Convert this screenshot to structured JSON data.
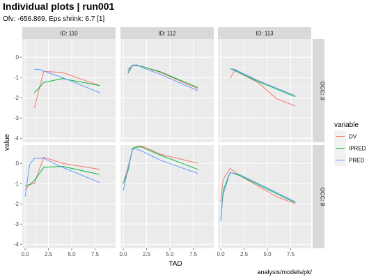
{
  "chart_data": {
    "type": "line",
    "title": "Individual plots | run001",
    "subtitle": "Ofv: -656.869, Eps shrink: 6.7 [1]",
    "xlabel": "TAD",
    "ylabel": "value",
    "caption": "analysis/models/pk/",
    "legend": {
      "title": "variable",
      "placement": "right"
    },
    "facet_columns": [
      "ID: 110",
      "ID: 112",
      "ID: 113"
    ],
    "facet_rows": [
      "OCC: 3",
      "OCC: 8"
    ],
    "xlim": [
      -0.3,
      9.7
    ],
    "x_ticks": [
      0.0,
      2.5,
      5.0,
      7.5
    ],
    "x_tick_labels": [
      "0.0",
      "2.5",
      "5.0",
      "7.5"
    ],
    "ylim": [
      -4.2,
      0.9
    ],
    "y_ticks": [
      -4,
      -3,
      -2,
      -1,
      0
    ],
    "y_tick_labels": [
      "-4",
      "-3",
      "-2",
      "-1",
      "0"
    ],
    "grid": true,
    "colors": {
      "DV": "#F8766D",
      "IPRED": "#00BA38",
      "PRED": "#619CFF"
    },
    "series_names": [
      "DV",
      "IPRED",
      "PRED"
    ],
    "panels": [
      {
        "row": 0,
        "col": 0,
        "series": [
          {
            "name": "DV",
            "x": [
              1.0,
              2.0,
              4.0,
              8.0
            ],
            "y": [
              -2.5,
              -0.7,
              -0.75,
              -1.4
            ]
          },
          {
            "name": "IPRED",
            "x": [
              1.0,
              2.0,
              4.0,
              8.0
            ],
            "y": [
              -1.75,
              -1.25,
              -1.05,
              -1.4
            ]
          },
          {
            "name": "PRED",
            "x": [
              1.0,
              1.5,
              2.0,
              4.0,
              8.0
            ],
            "y": [
              -0.6,
              -0.6,
              -0.68,
              -1.0,
              -1.75
            ]
          }
        ]
      },
      {
        "row": 0,
        "col": 1,
        "series": [
          {
            "name": "DV",
            "x": [
              0.5,
              1.0,
              2.0,
              4.0,
              8.0
            ],
            "y": [
              -0.6,
              -0.4,
              -0.45,
              -0.75,
              -1.55
            ]
          },
          {
            "name": "IPRED",
            "x": [
              0.5,
              1.0,
              1.5,
              2.0,
              4.0,
              8.0
            ],
            "y": [
              -0.8,
              -0.4,
              -0.4,
              -0.45,
              -0.72,
              -1.5
            ]
          },
          {
            "name": "PRED",
            "x": [
              0.5,
              1.0,
              1.5,
              2.0,
              4.0,
              8.0
            ],
            "y": [
              -0.7,
              -0.38,
              -0.38,
              -0.5,
              -0.85,
              -1.65
            ]
          }
        ]
      },
      {
        "row": 0,
        "col": 2,
        "series": [
          {
            "name": "DV",
            "x": [
              1.0,
              1.5,
              4.0,
              6.0,
              8.0
            ],
            "y": [
              -1.05,
              -0.65,
              -1.25,
              -2.05,
              -2.4
            ]
          },
          {
            "name": "IPRED",
            "x": [
              1.0,
              1.5,
              4.0,
              8.0
            ],
            "y": [
              -0.55,
              -0.65,
              -1.2,
              -1.95
            ]
          },
          {
            "name": "PRED",
            "x": [
              1.0,
              1.5,
              4.0,
              8.0
            ],
            "y": [
              -0.55,
              -0.6,
              -1.15,
              -1.9
            ]
          }
        ]
      },
      {
        "row": 1,
        "col": 0,
        "series": [
          {
            "name": "DV",
            "x": [
              0.0,
              0.5,
              1.0,
              2.0,
              4.0,
              8.0
            ],
            "y": [
              -1.3,
              -1.05,
              -1.0,
              0.3,
              0.0,
              -0.3
            ]
          },
          {
            "name": "IPRED",
            "x": [
              0.0,
              0.5,
              1.0,
              2.0,
              4.0,
              8.0
            ],
            "y": [
              -1.1,
              -1.05,
              -0.85,
              -0.2,
              -0.15,
              -0.55
            ]
          },
          {
            "name": "PRED",
            "x": [
              0.0,
              0.5,
              1.0,
              2.0,
              4.0,
              8.0
            ],
            "y": [
              -1.65,
              -0.05,
              0.25,
              0.25,
              -0.2,
              -0.95
            ]
          }
        ]
      },
      {
        "row": 1,
        "col": 1,
        "series": [
          {
            "name": "DV",
            "x": [
              0.0,
              0.5,
              1.0,
              1.5,
              2.0,
              4.0,
              8.0
            ],
            "y": [
              -1.0,
              -0.2,
              0.7,
              0.85,
              0.85,
              0.45,
              0.0
            ]
          },
          {
            "name": "IPRED",
            "x": [
              0.0,
              0.5,
              1.0,
              1.5,
              2.0,
              4.0,
              8.0
            ],
            "y": [
              -1.0,
              -0.4,
              0.75,
              0.8,
              0.8,
              0.4,
              -0.3
            ]
          },
          {
            "name": "PRED",
            "x": [
              0.0,
              0.5,
              1.0,
              1.5,
              2.0,
              4.0,
              8.0
            ],
            "y": [
              -1.35,
              -0.3,
              0.7,
              0.7,
              0.6,
              0.15,
              -0.5
            ]
          }
        ]
      },
      {
        "row": 1,
        "col": 2,
        "series": [
          {
            "name": "DV",
            "x": [
              0.0,
              0.25,
              1.0,
              2.0,
              6.0,
              8.0
            ],
            "y": [
              -1.9,
              -0.8,
              -0.25,
              -0.6,
              -1.65,
              -2.0
            ]
          },
          {
            "name": "IPRED",
            "x": [
              0.0,
              0.25,
              1.0,
              2.0,
              8.0
            ],
            "y": [
              -2.8,
              -1.35,
              -0.45,
              -0.6,
              -1.95
            ]
          },
          {
            "name": "PRED",
            "x": [
              0.0,
              0.25,
              1.0,
              2.0,
              8.0
            ],
            "y": [
              -2.85,
              -1.55,
              -0.45,
              -0.55,
              -1.9
            ]
          }
        ]
      }
    ]
  }
}
